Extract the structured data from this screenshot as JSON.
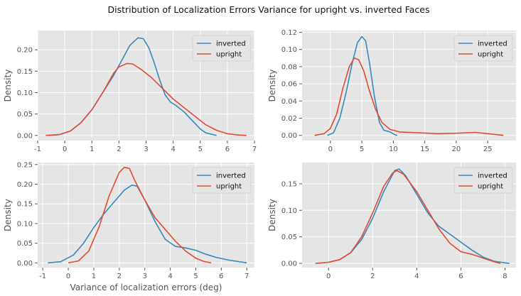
{
  "figure": {
    "suptitle": "Distribution of Localization Errors Variance for upright vs. inverted Faces"
  },
  "colors": {
    "inverted": "#348ABD",
    "upright": "#E24A33",
    "panel_bg": "#E5E5E5",
    "grid": "#FFFFFF",
    "tick_text": "#555555",
    "label_text": "#555555"
  },
  "chart_data": [
    {
      "type": "line",
      "title": "",
      "xlabel": "",
      "ylabel": "Density",
      "xlim": [
        -1,
        7
      ],
      "ylim": [
        -0.012,
        0.245
      ],
      "xticks": [
        -1,
        0,
        1,
        2,
        3,
        4,
        5,
        6,
        7
      ],
      "yticks": [
        0.0,
        0.05,
        0.1,
        0.15,
        0.2
      ],
      "ytick_labels": [
        "0.00",
        "0.05",
        "0.10",
        "0.15",
        "0.20"
      ],
      "grid": true,
      "legend": "upper right",
      "series": [
        {
          "name": "inverted",
          "points": [
            [
              -0.6,
              0.0
            ],
            [
              -0.2,
              0.002
            ],
            [
              0.2,
              0.01
            ],
            [
              0.6,
              0.03
            ],
            [
              1.0,
              0.06
            ],
            [
              1.4,
              0.1
            ],
            [
              1.8,
              0.14
            ],
            [
              2.1,
              0.175
            ],
            [
              2.4,
              0.21
            ],
            [
              2.7,
              0.228
            ],
            [
              2.9,
              0.226
            ],
            [
              3.1,
              0.205
            ],
            [
              3.3,
              0.17
            ],
            [
              3.5,
              0.13
            ],
            [
              3.7,
              0.095
            ],
            [
              3.9,
              0.078
            ],
            [
              4.1,
              0.07
            ],
            [
              4.4,
              0.055
            ],
            [
              4.7,
              0.035
            ],
            [
              5.0,
              0.015
            ],
            [
              5.2,
              0.006
            ],
            [
              5.6,
              0.0
            ]
          ]
        },
        {
          "name": "upright",
          "points": [
            [
              -0.7,
              0.0
            ],
            [
              -0.2,
              0.002
            ],
            [
              0.2,
              0.01
            ],
            [
              0.6,
              0.03
            ],
            [
              1.0,
              0.06
            ],
            [
              1.4,
              0.1
            ],
            [
              1.8,
              0.145
            ],
            [
              2.0,
              0.16
            ],
            [
              2.3,
              0.168
            ],
            [
              2.5,
              0.167
            ],
            [
              2.8,
              0.155
            ],
            [
              3.2,
              0.135
            ],
            [
              3.6,
              0.11
            ],
            [
              4.0,
              0.085
            ],
            [
              4.4,
              0.065
            ],
            [
              4.8,
              0.045
            ],
            [
              5.2,
              0.025
            ],
            [
              5.6,
              0.012
            ],
            [
              6.0,
              0.004
            ],
            [
              6.4,
              0.001
            ],
            [
              6.7,
              0.0
            ]
          ]
        }
      ]
    },
    {
      "type": "line",
      "title": "",
      "xlabel": "",
      "ylabel": "Density",
      "xlim": [
        -4.5,
        29.5
      ],
      "ylim": [
        -0.006,
        0.122
      ],
      "xticks": [
        0,
        5,
        10,
        15,
        20,
        25
      ],
      "yticks": [
        0.0,
        0.02,
        0.04,
        0.06,
        0.08,
        0.1,
        0.12
      ],
      "ytick_labels": [
        "0.00",
        "0.02",
        "0.04",
        "0.06",
        "0.08",
        "0.10",
        "0.12"
      ],
      "grid": true,
      "legend": "upper right",
      "series": [
        {
          "name": "inverted",
          "points": [
            [
              -0.5,
              0.0
            ],
            [
              0.5,
              0.003
            ],
            [
              1.5,
              0.02
            ],
            [
              2.5,
              0.05
            ],
            [
              3.5,
              0.085
            ],
            [
              4.3,
              0.108
            ],
            [
              5.0,
              0.115
            ],
            [
              5.6,
              0.11
            ],
            [
              6.2,
              0.085
            ],
            [
              7.0,
              0.045
            ],
            [
              7.8,
              0.015
            ],
            [
              8.5,
              0.006
            ],
            [
              9.5,
              0.004
            ],
            [
              10.2,
              0.001
            ],
            [
              10.6,
              0.0
            ]
          ]
        },
        {
          "name": "upright",
          "points": [
            [
              -2.5,
              0.0
            ],
            [
              -1.0,
              0.002
            ],
            [
              0.0,
              0.008
            ],
            [
              1.0,
              0.025
            ],
            [
              2.0,
              0.055
            ],
            [
              3.0,
              0.08
            ],
            [
              3.8,
              0.09
            ],
            [
              4.5,
              0.088
            ],
            [
              5.3,
              0.075
            ],
            [
              6.2,
              0.052
            ],
            [
              7.2,
              0.03
            ],
            [
              8.2,
              0.015
            ],
            [
              9.5,
              0.007
            ],
            [
              11.0,
              0.004
            ],
            [
              14.0,
              0.003
            ],
            [
              17.0,
              0.002
            ],
            [
              20.0,
              0.0025
            ],
            [
              23.0,
              0.0035
            ],
            [
              25.0,
              0.002
            ],
            [
              27.5,
              0.0
            ]
          ]
        }
      ]
    },
    {
      "type": "line",
      "title": "",
      "xlabel": "Variance of localization errors (deg)",
      "ylabel": "Density",
      "xlim": [
        -1.2,
        7.3
      ],
      "ylim": [
        -0.012,
        0.255
      ],
      "xticks": [
        -1,
        0,
        1,
        2,
        3,
        4,
        5,
        6,
        7
      ],
      "yticks": [
        0.0,
        0.05,
        0.1,
        0.15,
        0.2,
        0.25
      ],
      "ytick_labels": [
        "0.00",
        "0.05",
        "0.10",
        "0.15",
        "0.20",
        "0.25"
      ],
      "grid": true,
      "legend": "upper right",
      "series": [
        {
          "name": "inverted",
          "points": [
            [
              -0.8,
              0.0
            ],
            [
              -0.3,
              0.003
            ],
            [
              0.2,
              0.02
            ],
            [
              0.6,
              0.05
            ],
            [
              1.0,
              0.09
            ],
            [
              1.4,
              0.125
            ],
            [
              1.8,
              0.155
            ],
            [
              2.2,
              0.185
            ],
            [
              2.5,
              0.198
            ],
            [
              2.7,
              0.195
            ],
            [
              3.0,
              0.16
            ],
            [
              3.4,
              0.105
            ],
            [
              3.8,
              0.06
            ],
            [
              4.2,
              0.042
            ],
            [
              4.6,
              0.038
            ],
            [
              5.0,
              0.032
            ],
            [
              5.4,
              0.022
            ],
            [
              5.8,
              0.014
            ],
            [
              6.3,
              0.007
            ],
            [
              6.8,
              0.002
            ],
            [
              7.0,
              0.0
            ]
          ]
        },
        {
          "name": "upright",
          "points": [
            [
              0.0,
              0.0
            ],
            [
              0.4,
              0.005
            ],
            [
              0.8,
              0.03
            ],
            [
              1.2,
              0.09
            ],
            [
              1.6,
              0.17
            ],
            [
              2.0,
              0.23
            ],
            [
              2.2,
              0.243
            ],
            [
              2.4,
              0.24
            ],
            [
              2.6,
              0.21
            ],
            [
              3.0,
              0.16
            ],
            [
              3.4,
              0.115
            ],
            [
              3.8,
              0.085
            ],
            [
              4.2,
              0.055
            ],
            [
              4.6,
              0.03
            ],
            [
              5.0,
              0.012
            ],
            [
              5.3,
              0.004
            ],
            [
              5.6,
              0.0
            ]
          ]
        }
      ]
    },
    {
      "type": "line",
      "title": "",
      "xlabel": "",
      "ylabel": "Density",
      "xlim": [
        -1.2,
        8.5
      ],
      "ylim": [
        -0.008,
        0.19
      ],
      "xticks": [
        0,
        2,
        4,
        6,
        8
      ],
      "yticks": [
        0.0,
        0.05,
        0.1,
        0.15
      ],
      "ytick_labels": [
        "0.00",
        "0.05",
        "0.10",
        "0.15"
      ],
      "grid": true,
      "legend": "upper right",
      "series": [
        {
          "name": "inverted",
          "points": [
            [
              -0.6,
              0.0
            ],
            [
              0.0,
              0.002
            ],
            [
              0.5,
              0.007
            ],
            [
              1.0,
              0.02
            ],
            [
              1.5,
              0.045
            ],
            [
              2.0,
              0.085
            ],
            [
              2.5,
              0.135
            ],
            [
              3.0,
              0.175
            ],
            [
              3.2,
              0.178
            ],
            [
              3.5,
              0.165
            ],
            [
              4.0,
              0.13
            ],
            [
              4.5,
              0.095
            ],
            [
              5.0,
              0.07
            ],
            [
              5.5,
              0.055
            ],
            [
              6.0,
              0.04
            ],
            [
              6.5,
              0.025
            ],
            [
              7.0,
              0.012
            ],
            [
              7.5,
              0.004
            ],
            [
              8.0,
              0.001
            ],
            [
              8.2,
              0.0
            ]
          ]
        },
        {
          "name": "upright",
          "points": [
            [
              -0.5,
              0.0
            ],
            [
              0.0,
              0.002
            ],
            [
              0.5,
              0.007
            ],
            [
              1.0,
              0.02
            ],
            [
              1.5,
              0.05
            ],
            [
              2.0,
              0.095
            ],
            [
              2.5,
              0.145
            ],
            [
              2.9,
              0.17
            ],
            [
              3.1,
              0.175
            ],
            [
              3.4,
              0.168
            ],
            [
              4.0,
              0.135
            ],
            [
              4.5,
              0.1
            ],
            [
              5.0,
              0.065
            ],
            [
              5.5,
              0.038
            ],
            [
              6.0,
              0.022
            ],
            [
              6.5,
              0.017
            ],
            [
              7.0,
              0.01
            ],
            [
              7.5,
              0.003
            ],
            [
              7.8,
              0.0
            ]
          ]
        }
      ]
    }
  ]
}
